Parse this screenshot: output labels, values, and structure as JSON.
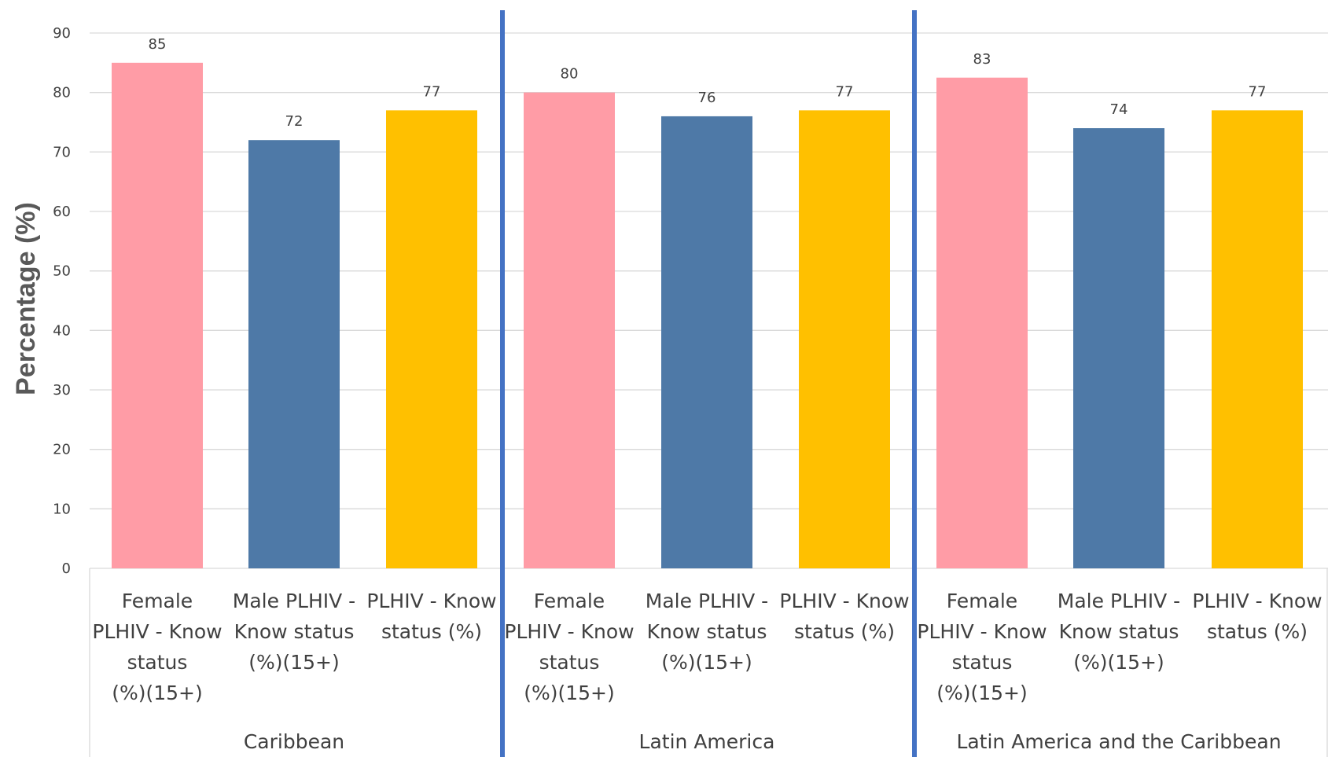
{
  "chart_data": {
    "type": "bar",
    "ylabel": "Percentage (%)",
    "ylim": [
      0,
      90
    ],
    "yticks": [
      0,
      10,
      20,
      30,
      40,
      50,
      60,
      70,
      80,
      90
    ],
    "grid": true,
    "groups": [
      {
        "name": "Caribbean",
        "categories": [
          {
            "label_lines": [
              "Female",
              "PLHIV - Know",
              "status",
              "(%)(15+)"
            ],
            "value": 85,
            "value_label": "85",
            "color": "#ff9ca6"
          },
          {
            "label_lines": [
              "Male PLHIV -",
              "Know status",
              "(%)(15+)"
            ],
            "value": 72,
            "value_label": "72",
            "color": "#4e79a7"
          },
          {
            "label_lines": [
              "PLHIV - Know",
              "status (%)"
            ],
            "value": 77,
            "value_label": "77",
            "color": "#ffc000"
          }
        ]
      },
      {
        "name": "Latin America",
        "categories": [
          {
            "label_lines": [
              "Female",
              "PLHIV - Know",
              "status",
              "(%)(15+)"
            ],
            "value": 80,
            "value_label": "80",
            "color": "#ff9ca6"
          },
          {
            "label_lines": [
              "Male PLHIV -",
              "Know status",
              "(%)(15+)"
            ],
            "value": 76,
            "value_label": "76",
            "color": "#4e79a7"
          },
          {
            "label_lines": [
              "PLHIV - Know",
              "status (%)"
            ],
            "value": 77,
            "value_label": "77",
            "color": "#ffc000"
          }
        ]
      },
      {
        "name": "Latin America and the Caribbean",
        "categories": [
          {
            "label_lines": [
              "Female",
              "PLHIV - Know",
              "status",
              "(%)(15+)"
            ],
            "value": 82.5,
            "value_label": "83",
            "color": "#ff9ca6"
          },
          {
            "label_lines": [
              "Male PLHIV -",
              "Know status",
              "(%)(15+)"
            ],
            "value": 74,
            "value_label": "74",
            "color": "#4e79a7"
          },
          {
            "label_lines": [
              "PLHIV - Know",
              "status (%)"
            ],
            "value": 77,
            "value_label": "77",
            "color": "#ffc000"
          }
        ]
      }
    ],
    "separator_color": "#4472c4"
  }
}
